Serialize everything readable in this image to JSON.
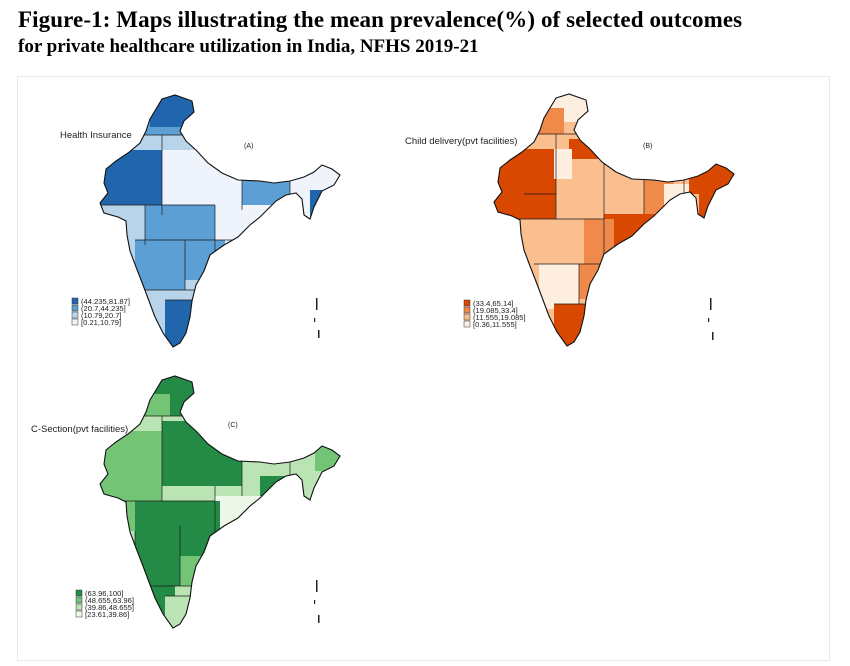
{
  "title": {
    "line1": "Figure-1: Maps illustrating the mean prevalence(%) of selected outcomes",
    "line2": "for private healthcare utilization in India, NFHS 2019-21"
  },
  "maps": [
    {
      "id": "A",
      "name": "Health Insurance",
      "tag": "(A)",
      "palette": [
        "#2166ac",
        "#5b9fd4",
        "#b7d4ea",
        "#eff3fb"
      ],
      "legend": [
        "(44.235,81.87]",
        "(20.7,44.235]",
        "(10.79,20.7]",
        "[0.21,10.79]"
      ]
    },
    {
      "id": "B",
      "name": "Child delivery(pvt facilities)",
      "tag": "(B)",
      "palette": [
        "#d94801",
        "#f08a4b",
        "#fbbf8f",
        "#fdeee0"
      ],
      "legend": [
        "(33.4,65.14]",
        "(19.085,33.4]",
        "(11.555,19.085]",
        "[0.36,11.555]"
      ]
    },
    {
      "id": "C",
      "name": "C-Section(pvt facilities)",
      "tag": "(C)",
      "palette": [
        "#238b45",
        "#74c476",
        "#bae4b3",
        "#edf8e9"
      ],
      "legend": [
        "(63.96,100]",
        "(48.655,63.96]",
        "(39.86,48.655]",
        "[23.61,39.86]"
      ]
    }
  ]
}
